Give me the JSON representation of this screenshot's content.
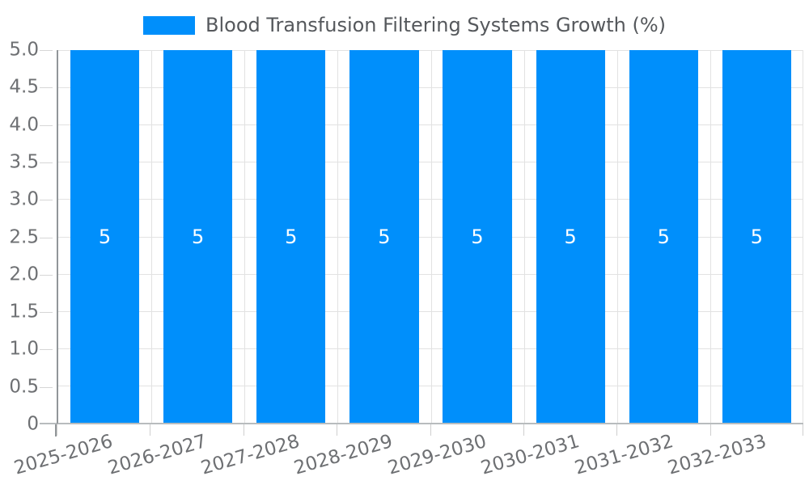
{
  "legend": {
    "label": "Blood Transfusion Filtering Systems Growth (%)",
    "swatch_color": "#008ffb"
  },
  "chart_data": {
    "type": "bar",
    "title": "Blood Transfusion Filtering Systems Growth (%)",
    "categories": [
      "2025-2026",
      "2026-2027",
      "2027-2028",
      "2028-2029",
      "2029-2030",
      "2030-2031",
      "2031-2032",
      "2032-2033"
    ],
    "series": [
      {
        "name": "Blood Transfusion Filtering Systems Growth (%)",
        "values": [
          5,
          5,
          5,
          5,
          5,
          5,
          5,
          5
        ]
      }
    ],
    "values": [
      5,
      5,
      5,
      5,
      5,
      5,
      5,
      5
    ],
    "data_labels": [
      "5",
      "5",
      "5",
      "5",
      "5",
      "5",
      "5",
      "5"
    ],
    "y_ticks": [
      "5.0",
      "4.5",
      "4.0",
      "3.5",
      "3.0",
      "2.5",
      "2.0",
      "1.5",
      "1.0",
      "0.5",
      "0"
    ],
    "ylim": [
      0,
      5
    ],
    "xlabel": "",
    "ylabel": "",
    "grid": true,
    "legend_position": "top",
    "bar_color": "#008ffb",
    "data_label_color": "#ffffff",
    "axis_label_color": "#6e7073"
  }
}
